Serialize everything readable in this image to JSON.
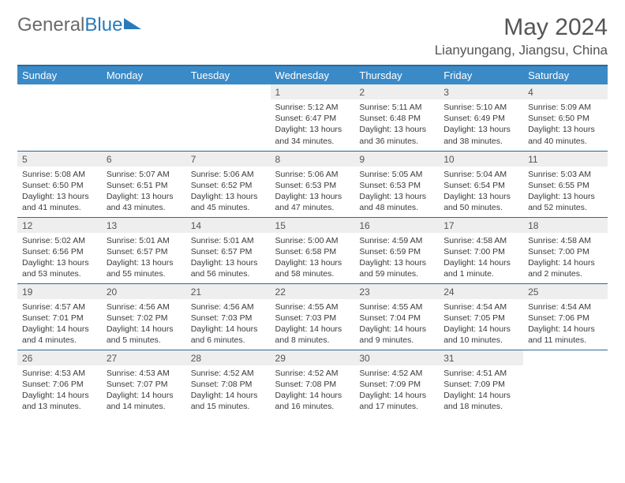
{
  "brand": {
    "part1": "General",
    "part2": "Blue"
  },
  "title": "May 2024",
  "location": "Lianyungang, Jiangsu, China",
  "weekdays": [
    "Sunday",
    "Monday",
    "Tuesday",
    "Wednesday",
    "Thursday",
    "Friday",
    "Saturday"
  ],
  "colors": {
    "header_bg": "#3a8ac8",
    "header_border": "#2a6a9a",
    "daynum_bg": "#eeeeee"
  },
  "weeks": [
    [
      {
        "n": "",
        "sr": "",
        "ss": "",
        "dl": ""
      },
      {
        "n": "",
        "sr": "",
        "ss": "",
        "dl": ""
      },
      {
        "n": "",
        "sr": "",
        "ss": "",
        "dl": ""
      },
      {
        "n": "1",
        "sr": "Sunrise: 5:12 AM",
        "ss": "Sunset: 6:47 PM",
        "dl": "Daylight: 13 hours and 34 minutes."
      },
      {
        "n": "2",
        "sr": "Sunrise: 5:11 AM",
        "ss": "Sunset: 6:48 PM",
        "dl": "Daylight: 13 hours and 36 minutes."
      },
      {
        "n": "3",
        "sr": "Sunrise: 5:10 AM",
        "ss": "Sunset: 6:49 PM",
        "dl": "Daylight: 13 hours and 38 minutes."
      },
      {
        "n": "4",
        "sr": "Sunrise: 5:09 AM",
        "ss": "Sunset: 6:50 PM",
        "dl": "Daylight: 13 hours and 40 minutes."
      }
    ],
    [
      {
        "n": "5",
        "sr": "Sunrise: 5:08 AM",
        "ss": "Sunset: 6:50 PM",
        "dl": "Daylight: 13 hours and 41 minutes."
      },
      {
        "n": "6",
        "sr": "Sunrise: 5:07 AM",
        "ss": "Sunset: 6:51 PM",
        "dl": "Daylight: 13 hours and 43 minutes."
      },
      {
        "n": "7",
        "sr": "Sunrise: 5:06 AM",
        "ss": "Sunset: 6:52 PM",
        "dl": "Daylight: 13 hours and 45 minutes."
      },
      {
        "n": "8",
        "sr": "Sunrise: 5:06 AM",
        "ss": "Sunset: 6:53 PM",
        "dl": "Daylight: 13 hours and 47 minutes."
      },
      {
        "n": "9",
        "sr": "Sunrise: 5:05 AM",
        "ss": "Sunset: 6:53 PM",
        "dl": "Daylight: 13 hours and 48 minutes."
      },
      {
        "n": "10",
        "sr": "Sunrise: 5:04 AM",
        "ss": "Sunset: 6:54 PM",
        "dl": "Daylight: 13 hours and 50 minutes."
      },
      {
        "n": "11",
        "sr": "Sunrise: 5:03 AM",
        "ss": "Sunset: 6:55 PM",
        "dl": "Daylight: 13 hours and 52 minutes."
      }
    ],
    [
      {
        "n": "12",
        "sr": "Sunrise: 5:02 AM",
        "ss": "Sunset: 6:56 PM",
        "dl": "Daylight: 13 hours and 53 minutes."
      },
      {
        "n": "13",
        "sr": "Sunrise: 5:01 AM",
        "ss": "Sunset: 6:57 PM",
        "dl": "Daylight: 13 hours and 55 minutes."
      },
      {
        "n": "14",
        "sr": "Sunrise: 5:01 AM",
        "ss": "Sunset: 6:57 PM",
        "dl": "Daylight: 13 hours and 56 minutes."
      },
      {
        "n": "15",
        "sr": "Sunrise: 5:00 AM",
        "ss": "Sunset: 6:58 PM",
        "dl": "Daylight: 13 hours and 58 minutes."
      },
      {
        "n": "16",
        "sr": "Sunrise: 4:59 AM",
        "ss": "Sunset: 6:59 PM",
        "dl": "Daylight: 13 hours and 59 minutes."
      },
      {
        "n": "17",
        "sr": "Sunrise: 4:58 AM",
        "ss": "Sunset: 7:00 PM",
        "dl": "Daylight: 14 hours and 1 minute."
      },
      {
        "n": "18",
        "sr": "Sunrise: 4:58 AM",
        "ss": "Sunset: 7:00 PM",
        "dl": "Daylight: 14 hours and 2 minutes."
      }
    ],
    [
      {
        "n": "19",
        "sr": "Sunrise: 4:57 AM",
        "ss": "Sunset: 7:01 PM",
        "dl": "Daylight: 14 hours and 4 minutes."
      },
      {
        "n": "20",
        "sr": "Sunrise: 4:56 AM",
        "ss": "Sunset: 7:02 PM",
        "dl": "Daylight: 14 hours and 5 minutes."
      },
      {
        "n": "21",
        "sr": "Sunrise: 4:56 AM",
        "ss": "Sunset: 7:03 PM",
        "dl": "Daylight: 14 hours and 6 minutes."
      },
      {
        "n": "22",
        "sr": "Sunrise: 4:55 AM",
        "ss": "Sunset: 7:03 PM",
        "dl": "Daylight: 14 hours and 8 minutes."
      },
      {
        "n": "23",
        "sr": "Sunrise: 4:55 AM",
        "ss": "Sunset: 7:04 PM",
        "dl": "Daylight: 14 hours and 9 minutes."
      },
      {
        "n": "24",
        "sr": "Sunrise: 4:54 AM",
        "ss": "Sunset: 7:05 PM",
        "dl": "Daylight: 14 hours and 10 minutes."
      },
      {
        "n": "25",
        "sr": "Sunrise: 4:54 AM",
        "ss": "Sunset: 7:06 PM",
        "dl": "Daylight: 14 hours and 11 minutes."
      }
    ],
    [
      {
        "n": "26",
        "sr": "Sunrise: 4:53 AM",
        "ss": "Sunset: 7:06 PM",
        "dl": "Daylight: 14 hours and 13 minutes."
      },
      {
        "n": "27",
        "sr": "Sunrise: 4:53 AM",
        "ss": "Sunset: 7:07 PM",
        "dl": "Daylight: 14 hours and 14 minutes."
      },
      {
        "n": "28",
        "sr": "Sunrise: 4:52 AM",
        "ss": "Sunset: 7:08 PM",
        "dl": "Daylight: 14 hours and 15 minutes."
      },
      {
        "n": "29",
        "sr": "Sunrise: 4:52 AM",
        "ss": "Sunset: 7:08 PM",
        "dl": "Daylight: 14 hours and 16 minutes."
      },
      {
        "n": "30",
        "sr": "Sunrise: 4:52 AM",
        "ss": "Sunset: 7:09 PM",
        "dl": "Daylight: 14 hours and 17 minutes."
      },
      {
        "n": "31",
        "sr": "Sunrise: 4:51 AM",
        "ss": "Sunset: 7:09 PM",
        "dl": "Daylight: 14 hours and 18 minutes."
      },
      {
        "n": "",
        "sr": "",
        "ss": "",
        "dl": ""
      }
    ]
  ]
}
